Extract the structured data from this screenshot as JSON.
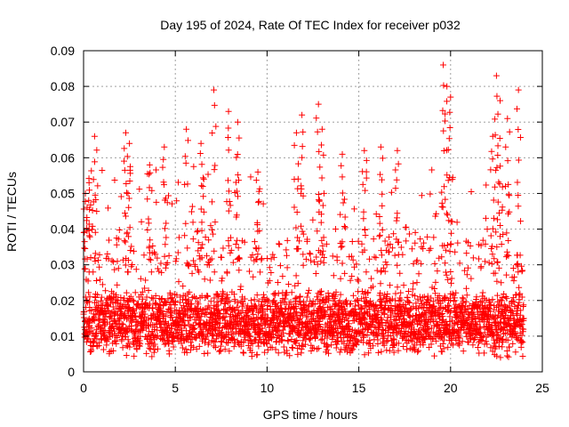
{
  "chart_data": {
    "type": "scatter",
    "title": "Day 195 of 2024, Rate Of TEC Index for receiver p032",
    "xlabel": "GPS time / hours",
    "ylabel": "ROTI / TECUs",
    "xlim": [
      0,
      25
    ],
    "ylim": [
      0,
      0.09
    ],
    "x_ticks": [
      0,
      5,
      10,
      15,
      20,
      25
    ],
    "x_tick_labels": [
      "0",
      "5",
      "10",
      "15",
      "20",
      "25"
    ],
    "y_ticks": [
      0,
      0.01,
      0.02,
      0.03,
      0.04,
      0.05,
      0.06,
      0.07,
      0.08,
      0.09
    ],
    "y_tick_labels": [
      "0",
      "0.01",
      "0.02",
      "0.03",
      "0.04",
      "0.05",
      "0.06",
      "0.07",
      "0.08",
      "0.09"
    ],
    "grid": true,
    "marker": "plus",
    "marker_color": "#ff0000",
    "series": [
      {
        "name": "ROTI",
        "x": [
          0.1,
          0.3,
          0.6,
          2.3,
          2.5,
          3.6,
          4.4,
          5.6,
          6.4,
          7.1,
          7.9,
          8.4,
          9.5,
          11.6,
          11.9,
          12.8,
          13.0,
          14.1,
          15.3,
          16.2,
          17.1,
          19.6,
          19.8,
          20.0,
          22.3,
          22.5,
          22.7,
          23.1,
          23.7
        ],
        "y": [
          0.05,
          0.053,
          0.066,
          0.067,
          0.064,
          0.058,
          0.063,
          0.068,
          0.064,
          0.079,
          0.073,
          0.07,
          0.056,
          0.067,
          0.072,
          0.075,
          0.068,
          0.061,
          0.062,
          0.063,
          0.062,
          0.086,
          0.08,
          0.077,
          0.066,
          0.083,
          0.076,
          0.071,
          0.079
        ],
        "dense_band": {
          "x_range": [
            0,
            24
          ],
          "y_range": [
            0.004,
            0.03
          ],
          "description": "dense continuous band of ROTI values throughout the day, with frequent spikes between 0.03 and 0.06"
        }
      }
    ]
  }
}
